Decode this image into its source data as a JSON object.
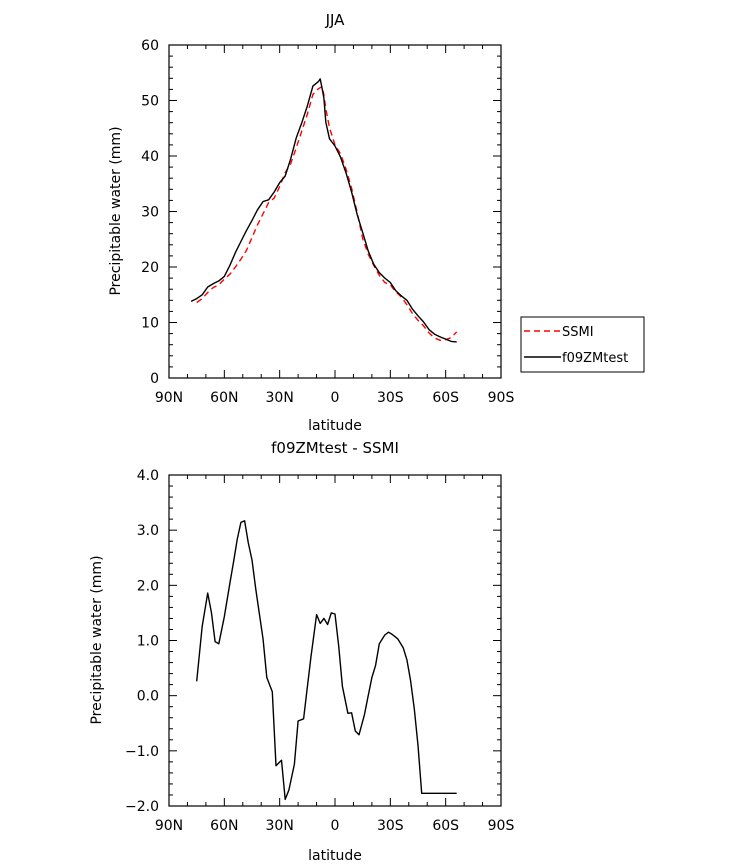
{
  "chart_data": [
    {
      "type": "line",
      "title": "JJA",
      "xlabel": "latitude",
      "ylabel": "Precipitable water (mm)",
      "xlim": [
        90,
        -90
      ],
      "ylim": [
        0,
        60
      ],
      "x_ticks": [
        90,
        60,
        30,
        0,
        -30,
        -60,
        -90
      ],
      "x_tick_labels": [
        "90N",
        "60N",
        "30N",
        "0",
        "30S",
        "60S",
        "90S"
      ],
      "y_ticks": [
        0,
        10,
        20,
        30,
        40,
        50,
        60
      ],
      "y_tick_labels": [
        "0",
        "10",
        "20",
        "30",
        "40",
        "50",
        "60"
      ],
      "legend_placement": "outside-right",
      "series": [
        {
          "name": "SSMI",
          "color": "#ff0000",
          "dash": "dashed",
          "x": [
            75,
            72,
            69,
            66,
            63,
            60,
            57,
            54,
            51,
            48,
            45,
            42,
            39,
            36,
            33,
            30,
            27,
            24,
            21,
            18,
            15,
            12,
            9,
            8,
            7,
            6,
            5,
            3,
            0,
            -3,
            -6,
            -9,
            -12,
            -15,
            -18,
            -21,
            -24,
            -27,
            -30,
            -33,
            -36,
            -39,
            -42,
            -45,
            -48,
            -51,
            -54,
            -57,
            -60,
            -63,
            -66
          ],
          "y": [
            13.6,
            14.3,
            15.4,
            16.3,
            16.8,
            17.8,
            18.7,
            20.0,
            21.4,
            23.0,
            25.3,
            27.6,
            29.6,
            31.6,
            32.4,
            34.5,
            37.0,
            38.6,
            41.5,
            44.5,
            47.5,
            51.1,
            52.1,
            52.3,
            52.5,
            51.0,
            48.5,
            45.1,
            42.0,
            40.4,
            37.6,
            34.2,
            29.9,
            25.1,
            22.3,
            20.3,
            18.5,
            17.2,
            16.8,
            15.5,
            14.6,
            13.2,
            11.6,
            10.4,
            9.4,
            8.1,
            7.2,
            6.8,
            6.9,
            7.3,
            8.3
          ]
        },
        {
          "name": "f09ZMtest",
          "color": "#000000",
          "dash": "solid",
          "x": [
            78,
            75,
            72,
            69,
            66,
            63,
            60,
            57,
            54,
            51,
            48,
            45,
            42,
            39,
            36,
            33,
            30,
            27,
            24,
            21,
            18,
            15,
            12,
            9,
            8,
            7,
            6,
            5,
            3,
            0,
            -3,
            -6,
            -9,
            -12,
            -15,
            -18,
            -21,
            -24,
            -27,
            -30,
            -33,
            -36,
            -39,
            -42,
            -45,
            -48,
            -51,
            -54,
            -57,
            -60,
            -63,
            -66
          ],
          "y": [
            13.8,
            14.3,
            15.0,
            16.4,
            17.0,
            17.5,
            18.3,
            20.3,
            22.6,
            24.6,
            26.6,
            28.4,
            30.3,
            31.8,
            32.1,
            33.5,
            35.2,
            36.4,
            39.5,
            43.3,
            46.0,
            49.0,
            52.6,
            53.4,
            53.9,
            52.2,
            50.4,
            46.1,
            43.1,
            41.8,
            39.8,
            36.9,
            33.5,
            29.5,
            26.2,
            22.9,
            20.5,
            19.0,
            18.0,
            17.2,
            15.7,
            14.8,
            14.0,
            12.4,
            11.2,
            10.1,
            8.7,
            7.9,
            7.4,
            7.0,
            6.6,
            6.5
          ]
        }
      ]
    },
    {
      "type": "line",
      "title": "f09ZMtest - SSMI",
      "xlabel": "latitude",
      "ylabel": "Precipitable water (mm)",
      "xlim": [
        90,
        -90
      ],
      "ylim": [
        -2,
        4
      ],
      "x_ticks": [
        90,
        60,
        30,
        0,
        -30,
        -60,
        -90
      ],
      "x_tick_labels": [
        "90N",
        "60N",
        "30N",
        "0",
        "30S",
        "60S",
        "90S"
      ],
      "y_ticks": [
        -2,
        -1,
        0,
        1,
        2,
        3,
        4
      ],
      "y_tick_labels": [
        "−2.0",
        "−1.0",
        "0.0",
        "1.0",
        "2.0",
        "3.0",
        "4.0"
      ],
      "series": [
        {
          "color": "#000000",
          "dash": "solid",
          "x": [
            75,
            72,
            69,
            67,
            65,
            63,
            60,
            57,
            55,
            53,
            51,
            49,
            47,
            45,
            43,
            41,
            39,
            37,
            34,
            32,
            29,
            27,
            25,
            22,
            20,
            17,
            15,
            13,
            10,
            8,
            6,
            4,
            2,
            0,
            -2,
            -4,
            -7,
            -9,
            -11,
            -13,
            -16,
            -18,
            -20,
            -22,
            -24,
            -27,
            -29,
            -31,
            -34,
            -37,
            -39,
            -41,
            -43,
            -45,
            -47,
            -49,
            -52,
            -55,
            -58,
            -61,
            -64,
            -66
          ],
          "y": [
            0.26,
            1.26,
            1.86,
            1.51,
            0.98,
            0.94,
            1.43,
            2.04,
            2.43,
            2.83,
            3.14,
            3.17,
            2.77,
            2.46,
            1.94,
            1.48,
            1.02,
            0.33,
            0.07,
            -1.27,
            -1.17,
            -1.88,
            -1.71,
            -1.24,
            -0.46,
            -0.42,
            0.15,
            0.71,
            1.47,
            1.31,
            1.4,
            1.29,
            1.5,
            1.48,
            0.9,
            0.17,
            -0.32,
            -0.31,
            -0.64,
            -0.71,
            -0.34,
            0.0,
            0.33,
            0.55,
            0.94,
            1.1,
            1.15,
            1.11,
            1.03,
            0.87,
            0.65,
            0.27,
            -0.24,
            -0.9,
            -1.77,
            -1.77,
            -1.77,
            -1.77,
            -1.77,
            -1.77,
            -1.77,
            -1.77
          ]
        }
      ]
    }
  ]
}
